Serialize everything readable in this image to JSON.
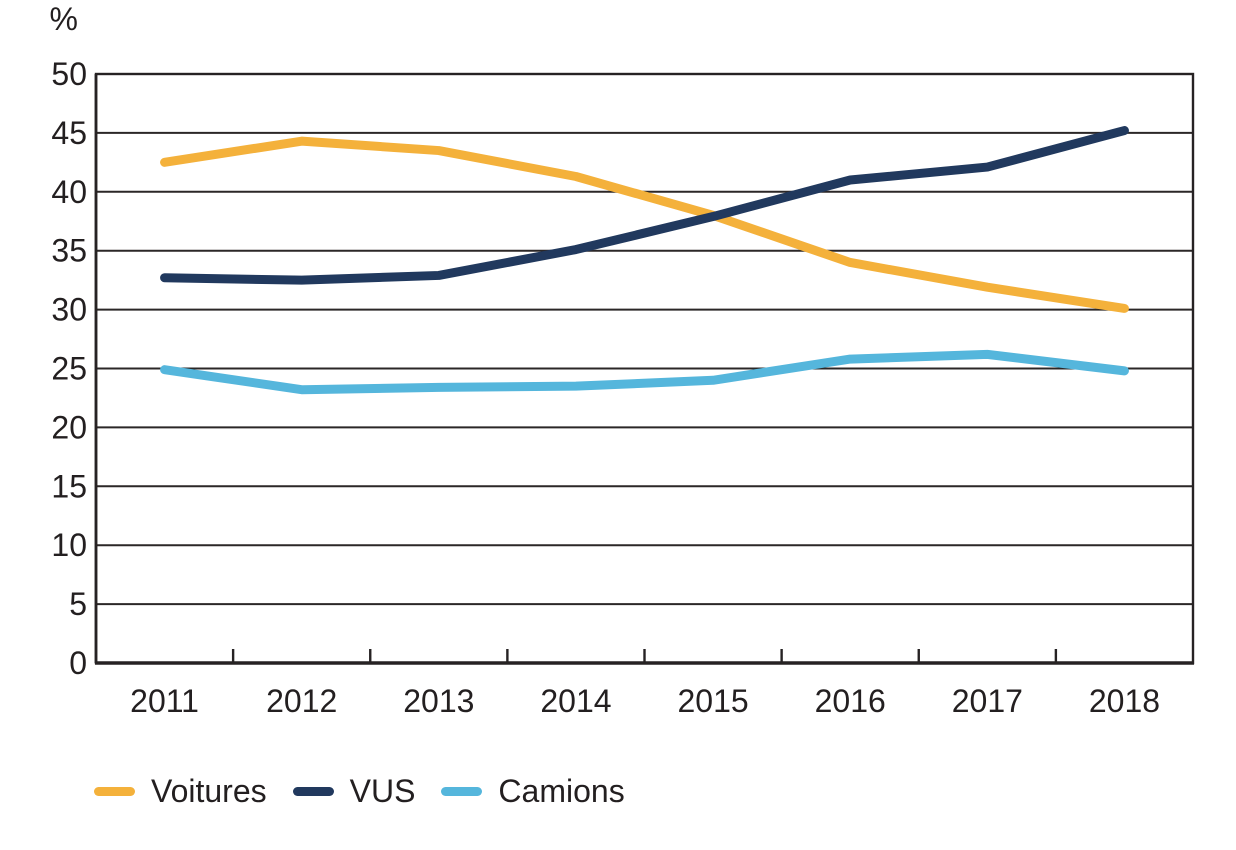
{
  "chart_data": {
    "type": "line",
    "title": "",
    "xlabel": "",
    "ylabel": "%",
    "categories": [
      "2011",
      "2012",
      "2013",
      "2014",
      "2015",
      "2016",
      "2017",
      "2018"
    ],
    "series": [
      {
        "name": "Voitures",
        "color": "#F4B13B",
        "values": [
          42.5,
          44.3,
          43.5,
          41.3,
          38.0,
          34.0,
          31.9,
          30.1
        ]
      },
      {
        "name": "VUS",
        "color": "#21395E",
        "values": [
          32.7,
          32.5,
          32.9,
          35.1,
          37.9,
          41.0,
          42.1,
          45.2
        ]
      },
      {
        "name": "Camions",
        "color": "#55B6DC",
        "values": [
          24.9,
          23.2,
          23.4,
          23.5,
          24.0,
          25.8,
          26.2,
          24.8
        ]
      }
    ],
    "ylim": [
      0,
      50
    ],
    "ytick_step": 5,
    "grid": true,
    "legend_position": "bottom-left"
  },
  "colors": {
    "text": "#231F20",
    "axis": "#262223",
    "grid": "#2B2727",
    "background": "#FFFFFF"
  }
}
